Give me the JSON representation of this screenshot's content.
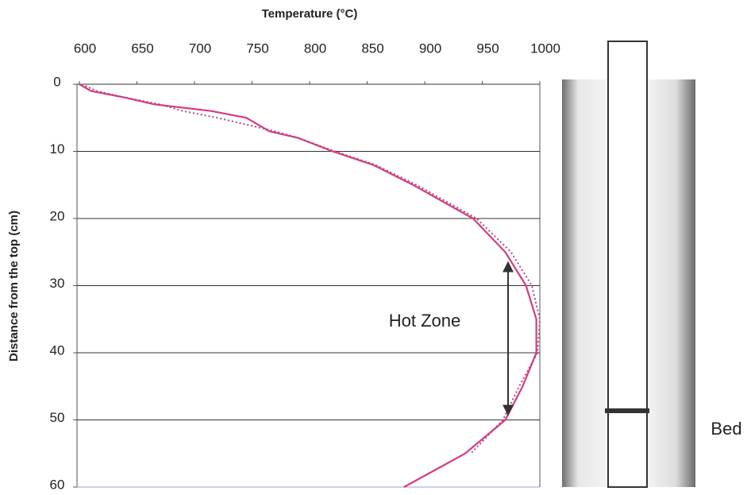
{
  "chart_data": {
    "type": "line",
    "x_label": "Temperature (°C)",
    "y_label": "Distance from the top (cm)",
    "xlim": [
      600,
      1000
    ],
    "xticks": [
      600,
      650,
      700,
      750,
      800,
      850,
      900,
      950,
      1000
    ],
    "ylim": [
      0,
      60
    ],
    "yticks": [
      0,
      10,
      20,
      30,
      40,
      50,
      60
    ],
    "y_inverted": true,
    "grid": true,
    "series": [
      {
        "style": "solid",
        "color": "#d63a84",
        "y": [
          0,
          1,
          2,
          3,
          4,
          5,
          6,
          7,
          8,
          10,
          12,
          15,
          20,
          25,
          30,
          35,
          40,
          45,
          50,
          55,
          60
        ],
        "values": [
          600,
          610,
          640,
          665,
          715,
          745,
          755,
          765,
          790,
          820,
          855,
          890,
          942,
          970,
          988,
          997,
          997,
          985,
          970,
          935,
          882
        ]
      },
      {
        "style": "dotted",
        "color": "#b0487e",
        "y": [
          0,
          1,
          2,
          3,
          4,
          5,
          6,
          7,
          8,
          10,
          12,
          15,
          20,
          25,
          30,
          35,
          40,
          45,
          50,
          55
        ],
        "values": [
          602,
          615,
          640,
          670,
          690,
          720,
          745,
          770,
          790,
          822,
          857,
          893,
          945,
          975,
          993,
          1000,
          998,
          982,
          968,
          940
        ]
      }
    ],
    "annotation": "Hot Zone",
    "bed_label": "Bed"
  }
}
